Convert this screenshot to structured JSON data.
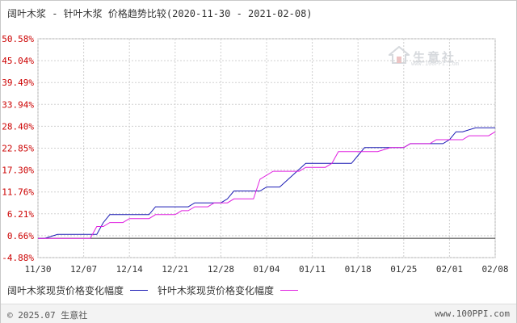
{
  "title": "阔叶木浆 - 针叶木浆 价格趋势比较(2020-11-30 - 2021-02-08)",
  "watermark": {
    "text": "生意社",
    "sub": "www.100PPI.com",
    "icon": "house-logo-icon"
  },
  "footer": {
    "copyright": "© 2025.07 生意社",
    "site": "www.100PPI.com"
  },
  "colors": {
    "series1": "#1a1ab4",
    "series2": "#e020e0",
    "grid": "#d0d0d0",
    "ytick": "#cc0000",
    "xtick": "#333333",
    "zero": "#333333"
  },
  "chart_data": {
    "type": "line",
    "y_ticks": [
      "50.58%",
      "45.04%",
      "39.49%",
      "33.94%",
      "28.40%",
      "22.85%",
      "17.30%",
      "11.76%",
      "6.21%",
      "0.66%",
      "-4.88%"
    ],
    "y_tick_values": [
      50.58,
      45.04,
      39.49,
      33.94,
      28.4,
      22.85,
      17.3,
      11.76,
      6.21,
      0.66,
      -4.88
    ],
    "ylim": [
      -4.88,
      50.58
    ],
    "x_ticks": [
      "11/30",
      "12/07",
      "12/14",
      "12/21",
      "12/28",
      "01/04",
      "01/11",
      "01/18",
      "01/25",
      "02/01",
      "02/08"
    ],
    "xlim": [
      0,
      70
    ],
    "grid": true,
    "legend_position": "bottom",
    "series": [
      {
        "name": "阔叶木浆现货价格变化幅度",
        "x": [
          0,
          1,
          3,
          4,
          9,
          10,
          11,
          12,
          13,
          17,
          18,
          19,
          23,
          24,
          25,
          28,
          29,
          30,
          31,
          34,
          35,
          36,
          37,
          41,
          42,
          43,
          44,
          48,
          49,
          50,
          51,
          56,
          57,
          58,
          59,
          62,
          63,
          64,
          65,
          67,
          70
        ],
        "y": [
          0,
          0,
          1,
          1,
          1,
          4,
          6,
          6,
          6,
          6,
          8,
          8,
          8,
          9,
          9,
          9,
          10,
          12,
          12,
          12,
          13,
          13,
          13,
          19,
          19,
          19,
          19,
          19,
          21,
          23,
          23,
          23,
          24,
          24,
          24,
          24,
          25,
          27,
          27,
          28,
          28
        ]
      },
      {
        "name": "针叶木浆现货价格变化幅度",
        "x": [
          0,
          1,
          4,
          7,
          8,
          9,
          10,
          11,
          12,
          13,
          14,
          17,
          18,
          19,
          21,
          22,
          23,
          24,
          25,
          26,
          27,
          28,
          29,
          30,
          31,
          33,
          34,
          36,
          37,
          39,
          40,
          41,
          44,
          45,
          46,
          47,
          48,
          49,
          50,
          52,
          54,
          56,
          57,
          58,
          59,
          60,
          61,
          64,
          65,
          66,
          67,
          68,
          69,
          70
        ],
        "y": [
          0,
          0,
          0,
          0,
          0,
          3,
          3,
          4,
          4,
          4,
          5,
          5,
          6,
          6,
          6,
          7,
          7,
          8,
          8,
          8,
          9,
          9,
          9,
          10,
          10,
          10,
          15,
          17,
          17,
          17,
          17,
          18,
          18,
          19,
          22,
          22,
          22,
          22,
          22,
          22,
          23,
          23,
          24,
          24,
          24,
          24,
          25,
          25,
          25,
          26,
          26,
          26,
          26,
          27
        ]
      }
    ]
  },
  "legend": [
    {
      "label": "阔叶木浆现货价格变化幅度"
    },
    {
      "label": "针叶木浆现货价格变化幅度"
    }
  ]
}
